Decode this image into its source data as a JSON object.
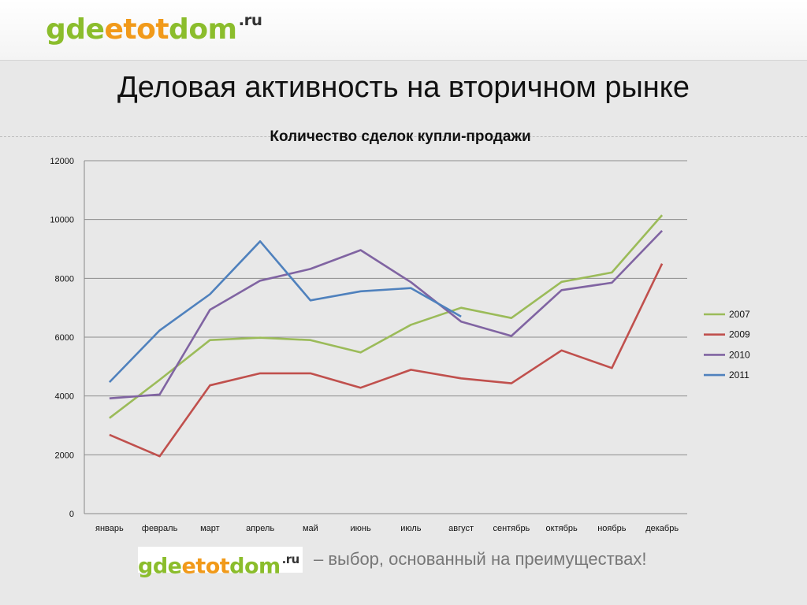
{
  "header": {
    "logo": {
      "part1": "gde",
      "part2": "etot",
      "part3": "dom",
      "suffix": ".ru"
    },
    "title": "Деловая активность на вторичном рынке"
  },
  "footer": {
    "logo": {
      "part1": "gde",
      "part2": "etot",
      "part3": "dom",
      "suffix": ".ru"
    },
    "tagline": "–  выбор, основанный на преимуществах!"
  },
  "colors": {
    "2007": "#9bbb59",
    "2009": "#c0504d",
    "2010": "#8064a2",
    "2011": "#4f81bd"
  },
  "chart_data": {
    "type": "line",
    "title": "Количество сделок купли-продажи",
    "xlabel": "",
    "ylabel": "",
    "categories": [
      "январь",
      "февраль",
      "март",
      "апрель",
      "май",
      "июнь",
      "июль",
      "август",
      "сентябрь",
      "октябрь",
      "ноябрь",
      "декабрь"
    ],
    "ylim": [
      0,
      12000
    ],
    "yticks": [
      0,
      2000,
      4000,
      6000,
      8000,
      10000,
      12000
    ],
    "grid": true,
    "legend": "right",
    "series": [
      {
        "name": "2007",
        "color": "#9bbb59",
        "values": [
          3250,
          4550,
          5900,
          5980,
          5900,
          5480,
          6420,
          7000,
          6650,
          7880,
          8200,
          10150
        ]
      },
      {
        "name": "2009",
        "color": "#c0504d",
        "values": [
          2680,
          1950,
          4360,
          4770,
          4770,
          4280,
          4890,
          4600,
          4430,
          5550,
          4950,
          8500
        ]
      },
      {
        "name": "2010",
        "color": "#8064a2",
        "values": [
          3920,
          4050,
          6930,
          7920,
          8320,
          8960,
          7870,
          6530,
          6040,
          7600,
          7850,
          9620
        ]
      },
      {
        "name": "2011",
        "color": "#4f81bd",
        "values": [
          4470,
          6230,
          7460,
          9260,
          7250,
          7560,
          7670,
          6700,
          null,
          null,
          null,
          null
        ]
      }
    ]
  }
}
